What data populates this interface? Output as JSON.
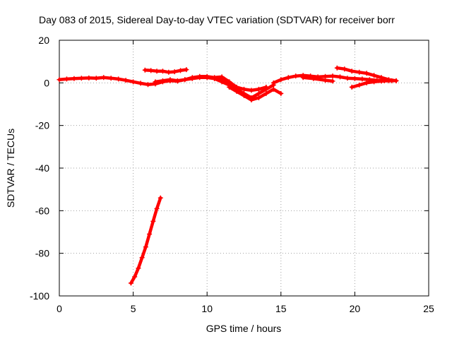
{
  "chart_data": {
    "type": "scatter",
    "title": "Day 083 of 2015, Sidereal Day-to-day VTEC variation (SDTVAR) for receiver borr",
    "xlabel": "GPS time / hours",
    "ylabel": "SDTVAR / TECUs",
    "xlim": [
      0,
      25
    ],
    "ylim": [
      -100,
      20
    ],
    "xticks": [
      0,
      5,
      10,
      15,
      20,
      25
    ],
    "yticks": [
      20,
      0,
      -20,
      -40,
      -60,
      -80,
      -100
    ],
    "grid": true,
    "series_color": "#ff0000",
    "series": [
      {
        "name": "track-main",
        "x": [
          0,
          0.5,
          1,
          1.5,
          2,
          2.5,
          3,
          3.5,
          4,
          4.5,
          5,
          5.5,
          6,
          6.5,
          7,
          7.5,
          8,
          8.5,
          9,
          9.5,
          10,
          10.5,
          11,
          11.5,
          12,
          12.5,
          13,
          13.5,
          14
        ],
        "y": [
          1.5,
          1.8,
          2,
          2.2,
          2.3,
          2.2,
          2.5,
          2.2,
          1.8,
          1.2,
          0.5,
          -0.2,
          -0.8,
          -0.5,
          0.5,
          1,
          0.8,
          1.5,
          2.5,
          3,
          3,
          2.5,
          2.8,
          0.5,
          -2,
          -3,
          -3.5,
          -3,
          -2
        ]
      },
      {
        "name": "track-upper-left",
        "x": [
          5.8,
          6.2,
          6.6,
          7,
          7.4,
          7.8,
          8.2,
          8.6
        ],
        "y": [
          6,
          5.8,
          5.5,
          5.5,
          5,
          5.2,
          5.8,
          6.2
        ]
      },
      {
        "name": "track-mid-left",
        "x": [
          6.5,
          7,
          7.5,
          8,
          8.5,
          9,
          9.5,
          10,
          10.5,
          11,
          11.5
        ],
        "y": [
          0.5,
          1,
          1.5,
          1,
          1.5,
          2,
          2.5,
          2.5,
          2,
          1.5,
          0.5
        ]
      },
      {
        "name": "track-dip",
        "x": [
          10.5,
          11,
          11.5,
          12,
          12.5,
          13,
          13.5,
          14,
          14.5
        ],
        "y": [
          2,
          0.5,
          -1,
          -3,
          -5,
          -7,
          -5,
          -3,
          -1
        ]
      },
      {
        "name": "track-dip-lower",
        "x": [
          11.5,
          12,
          12.5,
          13,
          13.5,
          14,
          14.5,
          15
        ],
        "y": [
          -2,
          -4,
          -6,
          -8,
          -7,
          -5,
          -3,
          -5
        ]
      },
      {
        "name": "track-right",
        "x": [
          14.5,
          15,
          15.5,
          16,
          16.5,
          17,
          17.5,
          18,
          18.5,
          19,
          19.5,
          20,
          20.5,
          21,
          21.5,
          22,
          22.5
        ],
        "y": [
          0,
          1.5,
          2.5,
          3.2,
          3.5,
          3.2,
          2.8,
          3,
          3.2,
          2.8,
          2.2,
          2,
          1.8,
          1.5,
          1.2,
          1,
          1
        ]
      },
      {
        "name": "track-right-upper",
        "x": [
          18.8,
          19.3,
          19.8,
          20.3,
          20.8,
          21.3,
          21.8,
          22.3,
          22.8
        ],
        "y": [
          7,
          6.5,
          5.5,
          5,
          4.5,
          3.5,
          2.5,
          1.5,
          1
        ]
      },
      {
        "name": "track-right-lower",
        "x": [
          16.5,
          17.2,
          18,
          18.5
        ],
        "y": [
          2.5,
          2,
          1.2,
          0.8
        ]
      },
      {
        "name": "track-right-rise",
        "x": [
          19.8,
          20.3,
          20.8,
          21.3,
          21.8,
          22.3,
          22.8
        ],
        "y": [
          -2,
          -1,
          0,
          0.5,
          0.8,
          1,
          1
        ]
      },
      {
        "name": "track-descent",
        "x": [
          4.85,
          5.1,
          5.35,
          5.6,
          5.85,
          6.1,
          6.35,
          6.6,
          6.85
        ],
        "y": [
          -94,
          -91,
          -87,
          -82,
          -77,
          -71,
          -65,
          -59,
          -54
        ]
      }
    ]
  }
}
